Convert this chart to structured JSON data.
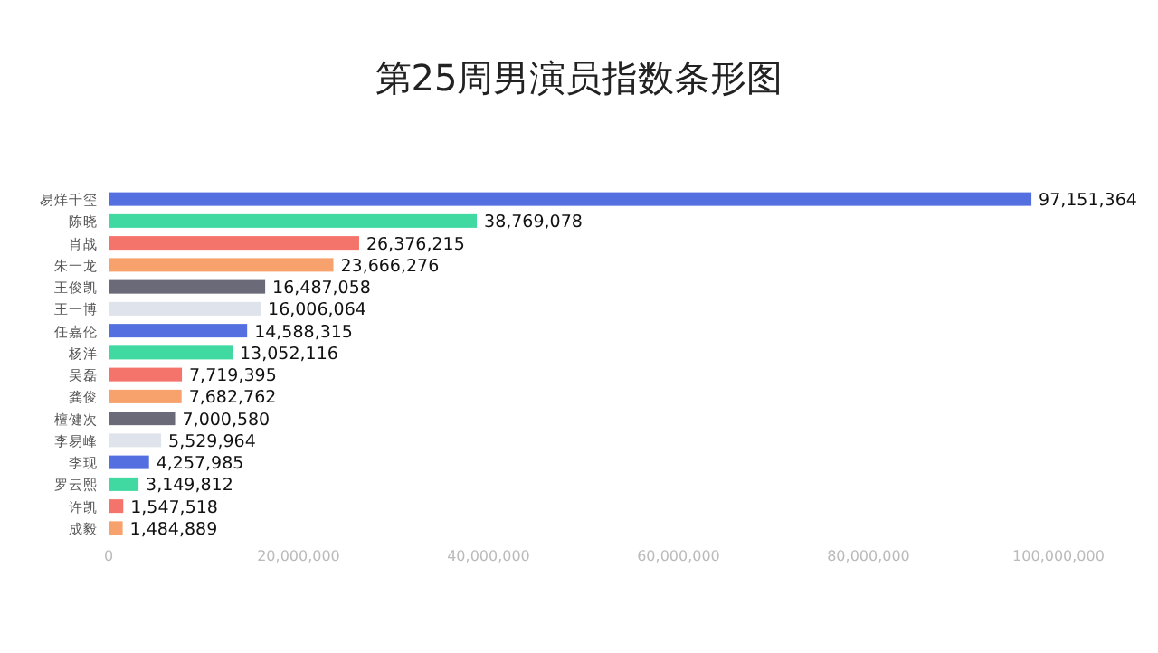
{
  "chart_data": {
    "type": "bar",
    "orientation": "horizontal",
    "title": "第25周男演员指数条形图",
    "categories": [
      "易烊千玺",
      "陈晓",
      "肖战",
      "朱一龙",
      "王俊凯",
      "王一博",
      "任嘉伦",
      "杨洋",
      "吴磊",
      "龚俊",
      "檀健次",
      "李易峰",
      "李现",
      "罗云熙",
      "许凯",
      "成毅"
    ],
    "values": [
      97151364,
      38769078,
      26376215,
      23666276,
      16487058,
      16006064,
      14588315,
      13052116,
      7719395,
      7682762,
      7000580,
      5529964,
      4257985,
      3149812,
      1547518,
      1484889
    ],
    "colors": [
      "#5470e0",
      "#3fd9a1",
      "#f4736b",
      "#f7a26d",
      "#6a6a78",
      "#dfe3ec",
      "#5470e0",
      "#3fd9a1",
      "#f4736b",
      "#f7a26d",
      "#6a6a78",
      "#dfe3ec",
      "#5470e0",
      "#3fd9a1",
      "#f4736b",
      "#f7a26d"
    ],
    "value_labels": [
      "97,151,364",
      "38,769,078",
      "26,376,215",
      "23,666,276",
      "16,487,058",
      "16,006,064",
      "14,588,315",
      "13,052,116",
      "7,719,395",
      "7,682,762",
      "7,000,580",
      "5,529,964",
      "4,257,985",
      "3,149,812",
      "1,547,518",
      "1,484,889"
    ],
    "xlim": [
      0,
      100000000
    ],
    "xticks": [
      0,
      {
        "value": 20000000,
        "label": "20,000,000"
      },
      {
        "value": 40000000,
        "label": "40,000,000"
      },
      {
        "value": 60000000,
        "label": "60,000,000"
      },
      {
        "value": 80000000,
        "label": "80,000,000"
      },
      {
        "value": 100000000,
        "label": "100,000,000"
      }
    ],
    "grid": false
  }
}
